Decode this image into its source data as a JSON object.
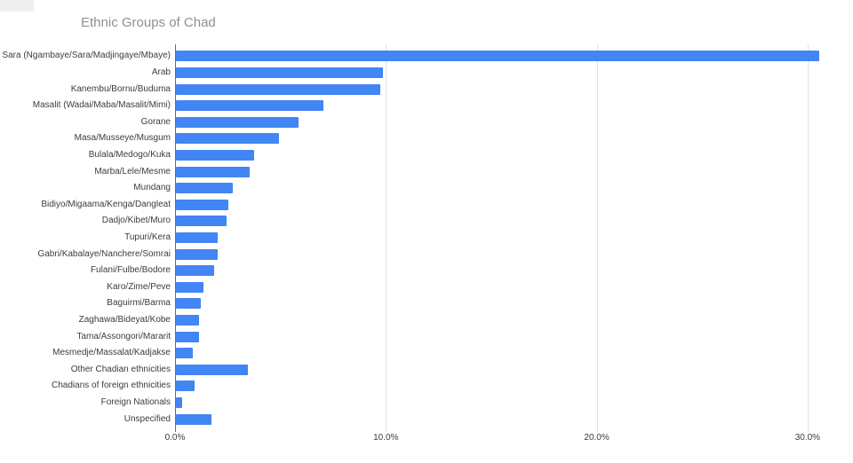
{
  "title": "Ethnic Groups of Chad",
  "chart_data": {
    "type": "bar",
    "orientation": "horizontal",
    "title": "Ethnic Groups of Chad",
    "xlabel": "",
    "ylabel": "",
    "value_unit": "%",
    "xlim": [
      0,
      32.2
    ],
    "grid": true,
    "legend_position": "none",
    "categories": [
      "Sara (Ngambaye/Sara/Madjingaye/Mbaye)",
      "Arab",
      "Kanembu/Bornu/Buduma",
      "Masalit (Wadai/Maba/Masalit/Mimi)",
      "Gorane",
      "Masa/Musseye/Musgum",
      "Bulala/Medogo/Kuka",
      "Marba/Lele/Mesme",
      "Mundang",
      "Bidiyo/Migaama/Kenga/Dangleat",
      "Dadjo/Kibet/Muro",
      "Tupuri/Kera",
      "Gabri/Kabalaye/Nanchere/Somrai",
      "Fulani/Fulbe/Bodore",
      "Karo/Zime/Peve",
      "Baguirmi/Barma",
      "Zaghawa/Bideyat/Kobe",
      "Tama/Assongori/Mararit",
      "Mesmedje/Massalat/Kadjakse",
      "Other Chadian ethnicities",
      "Chadians of foreign ethnicities",
      "Foreign Nationals",
      "Unspecified"
    ],
    "values": [
      30.5,
      9.8,
      9.7,
      7.0,
      5.8,
      4.9,
      3.7,
      3.5,
      2.7,
      2.5,
      2.4,
      2.0,
      2.0,
      1.8,
      1.3,
      1.2,
      1.1,
      1.1,
      0.8,
      3.4,
      0.9,
      0.3,
      1.7
    ],
    "x_ticks": [
      {
        "label": "0.0%",
        "value": 0
      },
      {
        "label": "10.0%",
        "value": 10
      },
      {
        "label": "20.0%",
        "value": 20
      },
      {
        "label": "30.0%",
        "value": 30
      }
    ],
    "colors": {
      "bar": "#4285f4",
      "title_text": "#8f8f8f",
      "axis_text": "#3c3c3c",
      "gridline": "#e2e2e2",
      "axis_line": "#6b6b6b",
      "background": "#ffffff"
    }
  }
}
